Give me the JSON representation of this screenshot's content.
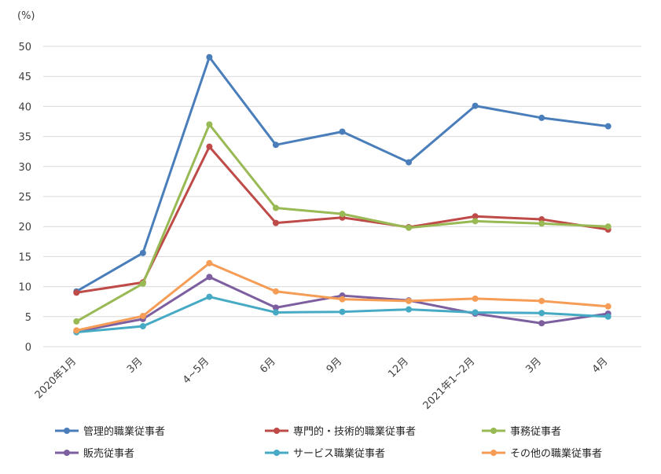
{
  "chart_data": {
    "type": "line",
    "title": "",
    "xlabel": "",
    "ylabel": "(%)",
    "ylim": [
      0,
      50
    ],
    "y_ticks": [
      0,
      5,
      10,
      15,
      20,
      25,
      30,
      35,
      40,
      45,
      50
    ],
    "grid": true,
    "legend_position": "bottom",
    "categories": [
      "2020年1月",
      "3月",
      "4~5月",
      "6月",
      "9月",
      "12月",
      "2021年1~2月",
      "3月",
      "4月"
    ],
    "series": [
      {
        "name": "管理的職業従事者",
        "color": "#4a7ebb",
        "values": [
          9.2,
          15.6,
          48.2,
          33.6,
          35.8,
          30.7,
          40.1,
          38.1,
          36.7
        ]
      },
      {
        "name": "専門的・技術的職業従事者",
        "color": "#be4b48",
        "values": [
          9.0,
          10.7,
          33.3,
          20.6,
          21.5,
          19.9,
          21.7,
          21.2,
          19.5
        ]
      },
      {
        "name": "事務従事者",
        "color": "#98b954",
        "values": [
          4.2,
          10.5,
          37.0,
          23.1,
          22.1,
          19.8,
          20.9,
          20.5,
          20.0
        ]
      },
      {
        "name": "販売従事者",
        "color": "#7d5fa0",
        "values": [
          2.5,
          4.6,
          11.6,
          6.5,
          8.5,
          7.7,
          5.5,
          3.9,
          5.5
        ]
      },
      {
        "name": "サービス職業従事者",
        "color": "#46aac5",
        "values": [
          2.4,
          3.4,
          8.3,
          5.7,
          5.8,
          6.2,
          5.7,
          5.6,
          5.0
        ]
      },
      {
        "name": "その他の職業従事者",
        "color": "#f59d56",
        "values": [
          2.7,
          5.1,
          13.9,
          9.2,
          7.9,
          7.6,
          8.0,
          7.6,
          6.7
        ]
      }
    ]
  }
}
